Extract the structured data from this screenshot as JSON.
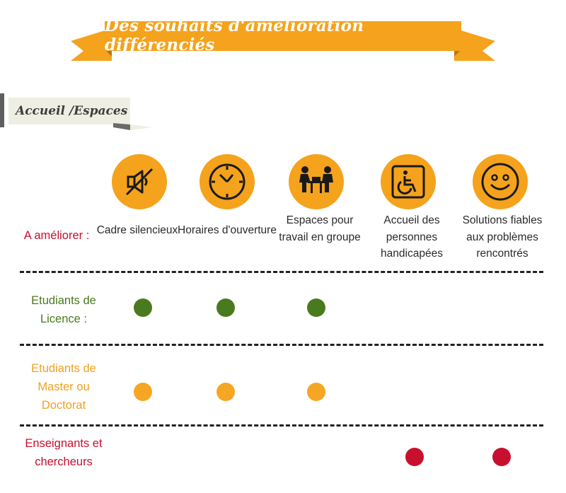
{
  "title": "Des souhaits d'amélioration différenciés",
  "section": "Accueil /Espaces",
  "colors": {
    "ribbon": "#f5a21c",
    "ribbon_dark": "#c8821a",
    "licence": "#4a7a1e",
    "master": "#f5a623",
    "enseignants": "#c8102e",
    "icon_bg": "#f5a21c"
  },
  "row_header": "A améliorer :",
  "columns": [
    {
      "icon": "mute-speaker-icon",
      "label": "Cadre silencieux"
    },
    {
      "icon": "clock-icon",
      "label": "Horaires d'ouverture"
    },
    {
      "icon": "group-work-icon",
      "label": "Espaces pour travail en groupe"
    },
    {
      "icon": "wheelchair-icon",
      "label": "Accueil des personnes handicapées"
    },
    {
      "icon": "smiley-icon",
      "label": "Solutions fiables aux problèmes rencontrés"
    }
  ],
  "rows": [
    {
      "label": "Etudiants de Licence :",
      "marks": [
        true,
        true,
        true,
        false,
        false
      ]
    },
    {
      "label": "Etudiants de Master ou Doctorat",
      "marks": [
        true,
        true,
        true,
        false,
        false
      ]
    },
    {
      "label": "Enseignants et chercheurs",
      "marks": [
        false,
        false,
        false,
        true,
        true
      ]
    }
  ]
}
